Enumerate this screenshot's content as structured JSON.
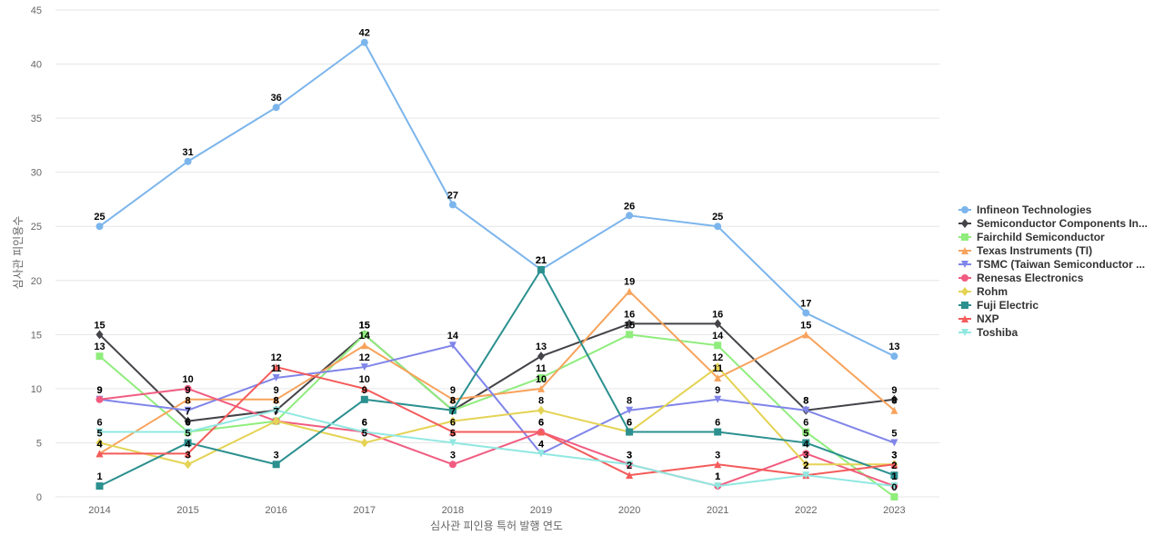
{
  "chart_data": {
    "type": "line",
    "xlabel": "심사관 피인용 특허 발행 연도",
    "ylabel": "심사관 피인용수",
    "x": [
      "2014",
      "2015",
      "2016",
      "2017",
      "2018",
      "2019",
      "2020",
      "2021",
      "2022",
      "2023"
    ],
    "ylim": [
      0,
      45
    ],
    "yticks": [
      0,
      5,
      10,
      15,
      20,
      25,
      30,
      35,
      40,
      45
    ],
    "grid": true,
    "legend_position": "right",
    "series": [
      {
        "name": "Infineon Technologies",
        "color": "#7cb5ec",
        "marker": "circle",
        "values": [
          25,
          31,
          36,
          42,
          27,
          21,
          26,
          25,
          17,
          13
        ]
      },
      {
        "name": "Semiconductor Components In...",
        "color": "#434348",
        "marker": "diamond",
        "values": [
          15,
          7,
          8,
          15,
          8,
          13,
          16,
          16,
          8,
          9
        ]
      },
      {
        "name": "Fairchild Semiconductor",
        "color": "#90ed7d",
        "marker": "square",
        "values": [
          13,
          6,
          7,
          15,
          8,
          11,
          15,
          14,
          6,
          0
        ]
      },
      {
        "name": "Texas Instruments (TI)",
        "color": "#f7a35c",
        "marker": "triangle",
        "values": [
          4,
          9,
          9,
          14,
          9,
          10,
          19,
          11,
          15,
          8
        ]
      },
      {
        "name": "TSMC (Taiwan Semiconductor ...",
        "color": "#8085e9",
        "marker": "triangle-down",
        "values": [
          9,
          8,
          11,
          12,
          14,
          4,
          8,
          9,
          8,
          5
        ]
      },
      {
        "name": "Renesas Electronics",
        "color": "#f15c80",
        "marker": "circle",
        "values": [
          9,
          10,
          7,
          6,
          3,
          6,
          3,
          1,
          4,
          1
        ]
      },
      {
        "name": "Rohm",
        "color": "#e4d354",
        "marker": "diamond",
        "values": [
          5,
          3,
          7,
          5,
          7,
          8,
          6,
          12,
          3,
          3
        ]
      },
      {
        "name": "Fuji Electric",
        "color": "#2b908f",
        "marker": "square",
        "values": [
          1,
          5,
          3,
          9,
          8,
          21,
          6,
          6,
          5,
          2
        ]
      },
      {
        "name": "NXP",
        "color": "#f45b5b",
        "marker": "triangle",
        "values": [
          4,
          4,
          12,
          10,
          6,
          6,
          2,
          3,
          2,
          3
        ]
      },
      {
        "name": "Toshiba",
        "color": "#91e8e1",
        "marker": "triangle-down",
        "values": [
          6,
          6,
          8,
          6,
          5,
          4,
          3,
          1,
          2,
          1
        ]
      }
    ]
  }
}
